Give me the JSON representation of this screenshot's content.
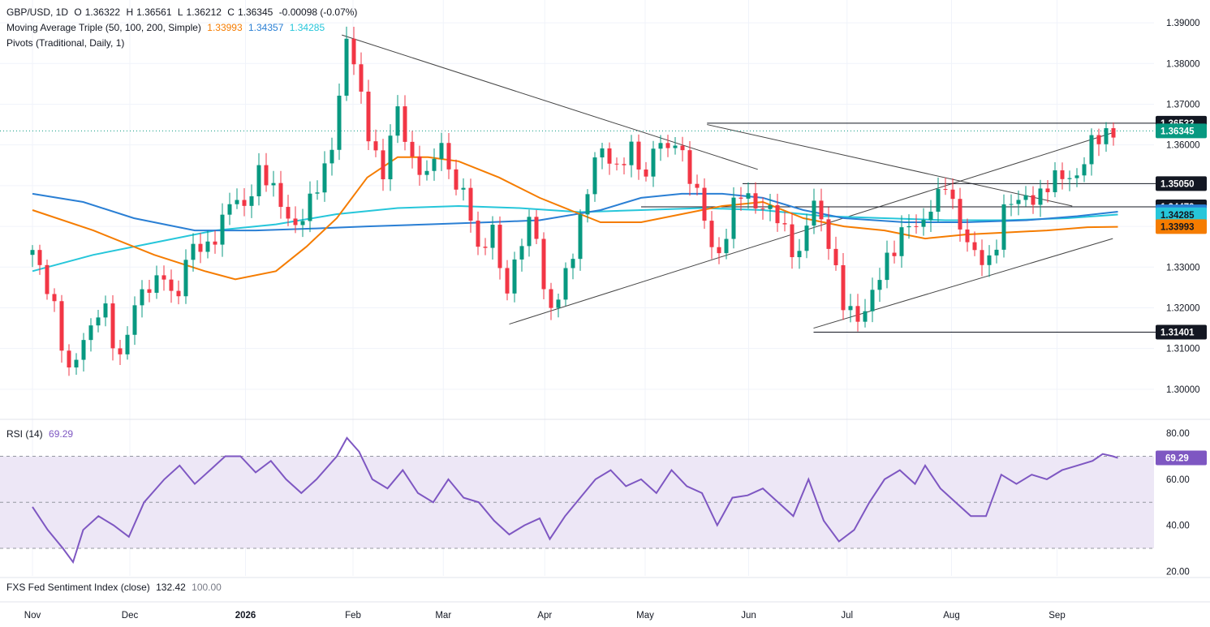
{
  "legend": {
    "symbol": "GBP/USD, 1D",
    "o_label": "O",
    "o": "1.36322",
    "h_label": "H",
    "h": "1.36561",
    "l_label": "L",
    "l": "1.36212",
    "c_label": "C",
    "c": "1.36345",
    "change": "-0.00098 (-0.07%)",
    "ma_label": "Moving Average Triple (50, 100, 200, Simple)",
    "ma50": "1.33993",
    "ma100": "1.34357",
    "ma200": "1.34285",
    "pivots_label": "Pivots (Traditional, Daily, 1)",
    "rsi_label": "RSI (14)",
    "rsi_value": "69.29",
    "fxs_label": "FXS Fed Sentiment Index (close)",
    "fxs_value": "132.42",
    "fxs_value2": "100.00"
  },
  "colors": {
    "up": "#089981",
    "down": "#f23645",
    "ma50": "#f57c00",
    "ma100": "#2a7fd4",
    "ma200": "#26c6da",
    "rsi": "#7e57c2",
    "rsi_band": "#ede7f6",
    "trend": "#444444",
    "grid": "#f0f3fa"
  },
  "chart_data": [
    {
      "type": "candlestick",
      "title": "GBP/USD, 1D",
      "ylim": [
        1.293,
        1.394
      ],
      "yticks": [
        "1.30000",
        "1.31000",
        "1.32000",
        "1.33000",
        "1.34000",
        "1.35000",
        "1.36000",
        "1.37000",
        "1.38000",
        "1.39000"
      ],
      "xticks": [
        {
          "label": "Nov",
          "t": 0.0,
          "bold": false
        },
        {
          "label": "Dec",
          "t": 0.096,
          "bold": false
        },
        {
          "label": "2026",
          "t": 0.21,
          "bold": true
        },
        {
          "label": "Feb",
          "t": 0.316,
          "bold": false
        },
        {
          "label": "Mar",
          "t": 0.405,
          "bold": false
        },
        {
          "label": "Apr",
          "t": 0.505,
          "bold": false
        },
        {
          "label": "May",
          "t": 0.604,
          "bold": false
        },
        {
          "label": "Jun",
          "t": 0.706,
          "bold": false
        },
        {
          "label": "Jul",
          "t": 0.803,
          "bold": false
        },
        {
          "label": "Aug",
          "t": 0.906,
          "bold": false
        },
        {
          "label": "Sep",
          "t": 1.01,
          "bold": false
        }
      ],
      "close_path": [
        [
          0,
          1.333
        ],
        [
          0.02,
          1.323
        ],
        [
          0.035,
          1.302
        ],
        [
          0.05,
          1.313
        ],
        [
          0.07,
          1.32
        ],
        [
          0.085,
          1.307
        ],
        [
          0.095,
          1.316
        ],
        [
          0.105,
          1.322
        ],
        [
          0.12,
          1.327
        ],
        [
          0.13,
          1.329
        ],
        [
          0.14,
          1.318
        ],
        [
          0.155,
          1.337
        ],
        [
          0.175,
          1.333
        ],
        [
          0.195,
          1.348
        ],
        [
          0.21,
          1.343
        ],
        [
          0.225,
          1.356
        ],
        [
          0.24,
          1.347
        ],
        [
          0.255,
          1.34
        ],
        [
          0.27,
          1.344
        ],
        [
          0.285,
          1.351
        ],
        [
          0.3,
          1.366
        ],
        [
          0.308,
          1.386
        ],
        [
          0.318,
          1.379
        ],
        [
          0.33,
          1.365
        ],
        [
          0.345,
          1.351
        ],
        [
          0.36,
          1.37
        ],
        [
          0.375,
          1.355
        ],
        [
          0.39,
          1.351
        ],
        [
          0.4,
          1.364
        ],
        [
          0.415,
          1.349
        ],
        [
          0.43,
          1.347
        ],
        [
          0.44,
          1.333
        ],
        [
          0.455,
          1.339
        ],
        [
          0.465,
          1.323
        ],
        [
          0.48,
          1.335
        ],
        [
          0.495,
          1.342
        ],
        [
          0.505,
          1.323
        ],
        [
          0.515,
          1.319
        ],
        [
          0.53,
          1.331
        ],
        [
          0.545,
          1.348
        ],
        [
          0.56,
          1.359
        ],
        [
          0.575,
          1.355
        ],
        [
          0.59,
          1.358
        ],
        [
          0.605,
          1.352
        ],
        [
          0.615,
          1.364
        ],
        [
          0.625,
          1.356
        ],
        [
          0.635,
          1.362
        ],
        [
          0.645,
          1.355
        ],
        [
          0.655,
          1.348
        ],
        [
          0.665,
          1.338
        ],
        [
          0.675,
          1.332
        ],
        [
          0.69,
          1.344
        ],
        [
          0.7,
          1.348
        ],
        [
          0.72,
          1.345
        ],
        [
          0.74,
          1.34
        ],
        [
          0.755,
          1.332
        ],
        [
          0.77,
          1.346
        ],
        [
          0.785,
          1.337
        ],
        [
          0.8,
          1.319
        ],
        [
          0.815,
          1.318
        ],
        [
          0.83,
          1.324
        ],
        [
          0.845,
          1.333
        ],
        [
          0.86,
          1.341
        ],
        [
          0.875,
          1.338
        ],
        [
          0.885,
          1.346
        ],
        [
          0.9,
          1.35
        ],
        [
          0.91,
          1.342
        ],
        [
          0.92,
          1.338
        ],
        [
          0.935,
          1.331
        ],
        [
          0.945,
          1.33
        ],
        [
          0.96,
          1.348
        ],
        [
          0.97,
          1.345
        ],
        [
          0.985,
          1.347
        ],
        [
          1.0,
          1.35
        ],
        [
          1.015,
          1.352
        ],
        [
          1.03,
          1.353
        ],
        [
          1.045,
          1.36
        ],
        [
          1.06,
          1.364
        ],
        [
          1.07,
          1.3635
        ]
      ],
      "ma50_path": [
        [
          0,
          1.344
        ],
        [
          0.06,
          1.339
        ],
        [
          0.12,
          1.333
        ],
        [
          0.17,
          1.329
        ],
        [
          0.2,
          1.327
        ],
        [
          0.24,
          1.329
        ],
        [
          0.27,
          1.335
        ],
        [
          0.3,
          1.342
        ],
        [
          0.33,
          1.352
        ],
        [
          0.36,
          1.357
        ],
        [
          0.39,
          1.357
        ],
        [
          0.42,
          1.356
        ],
        [
          0.46,
          1.352
        ],
        [
          0.5,
          1.347
        ],
        [
          0.53,
          1.344
        ],
        [
          0.56,
          1.341
        ],
        [
          0.6,
          1.341
        ],
        [
          0.64,
          1.343
        ],
        [
          0.68,
          1.345
        ],
        [
          0.72,
          1.346
        ],
        [
          0.76,
          1.342
        ],
        [
          0.8,
          1.34
        ],
        [
          0.84,
          1.339
        ],
        [
          0.88,
          1.337
        ],
        [
          0.92,
          1.338
        ],
        [
          0.96,
          1.3385
        ],
        [
          1.0,
          1.339
        ],
        [
          1.04,
          1.3398
        ],
        [
          1.07,
          1.3399
        ]
      ],
      "ma100_path": [
        [
          0,
          1.348
        ],
        [
          0.05,
          1.346
        ],
        [
          0.1,
          1.342
        ],
        [
          0.16,
          1.339
        ],
        [
          0.22,
          1.339
        ],
        [
          0.28,
          1.3395
        ],
        [
          0.33,
          1.34
        ],
        [
          0.39,
          1.3405
        ],
        [
          0.45,
          1.341
        ],
        [
          0.5,
          1.3415
        ],
        [
          0.56,
          1.344
        ],
        [
          0.6,
          1.347
        ],
        [
          0.64,
          1.348
        ],
        [
          0.68,
          1.348
        ],
        [
          0.72,
          1.347
        ],
        [
          0.76,
          1.344
        ],
        [
          0.8,
          1.342
        ],
        [
          0.86,
          1.341
        ],
        [
          0.92,
          1.341
        ],
        [
          0.98,
          1.3415
        ],
        [
          1.03,
          1.3425
        ],
        [
          1.07,
          1.3436
        ]
      ],
      "ma200_path": [
        [
          0,
          1.329
        ],
        [
          0.06,
          1.333
        ],
        [
          0.12,
          1.336
        ],
        [
          0.18,
          1.339
        ],
        [
          0.24,
          1.3405
        ],
        [
          0.3,
          1.343
        ],
        [
          0.36,
          1.3445
        ],
        [
          0.42,
          1.345
        ],
        [
          0.48,
          1.3445
        ],
        [
          0.54,
          1.3435
        ],
        [
          0.6,
          1.344
        ],
        [
          0.66,
          1.3445
        ],
        [
          0.72,
          1.344
        ],
        [
          0.78,
          1.3425
        ],
        [
          0.84,
          1.342
        ],
        [
          0.9,
          1.3415
        ],
        [
          0.96,
          1.3415
        ],
        [
          1.02,
          1.342
        ],
        [
          1.07,
          1.3429
        ]
      ],
      "trendlines": [
        [
          [
            0.305,
            1.387
          ],
          [
            0.715,
            1.354
          ]
        ],
        [
          [
            0.665,
            1.365
          ],
          [
            1.025,
            1.345
          ]
        ],
        [
          [
            0.47,
            1.316
          ],
          [
            1.065,
            1.363
          ]
        ],
        [
          [
            0.77,
            1.315
          ],
          [
            1.065,
            1.337
          ]
        ]
      ],
      "pivot_lines": [
        {
          "value": 1.36533,
          "label": "1.36533",
          "t0": 0.665,
          "t1": 1.07
        },
        {
          "value": 1.3505,
          "label": "1.35050",
          "t0": 0.7,
          "t1": 1.07
        },
        {
          "value": 1.34479,
          "label": "1.34479",
          "t0": 0.6,
          "t1": 1.07
        },
        {
          "value": 1.31401,
          "label": "1.31401",
          "t0": 0.77,
          "t1": 1.07
        }
      ],
      "price_labels": [
        {
          "value": 1.36533,
          "label": "1.36533",
          "style": "dark"
        },
        {
          "value": 1.36345,
          "label": "1.36345",
          "style": "up"
        },
        {
          "value": 1.3505,
          "label": "1.35050",
          "style": "dark"
        },
        {
          "value": 1.34479,
          "label": "1.34479",
          "style": "dark"
        },
        {
          "value": 1.34357,
          "label": "1.34357",
          "style": "ma100"
        },
        {
          "value": 1.34285,
          "label": "1.34285",
          "style": "ma200"
        },
        {
          "value": 1.33993,
          "label": "1.33993",
          "style": "ma50"
        },
        {
          "value": 1.31401,
          "label": "1.31401",
          "style": "dark"
        }
      ]
    },
    {
      "type": "line",
      "title": "RSI (14)",
      "ylim": [
        18,
        85
      ],
      "yticks": [
        "20.00",
        "40.00",
        "60.00",
        "80.00"
      ],
      "band": [
        30,
        70
      ],
      "midline": 50,
      "last_label": "69.29",
      "rsi_path": [
        [
          0,
          48
        ],
        [
          0.015,
          38
        ],
        [
          0.03,
          30
        ],
        [
          0.04,
          24
        ],
        [
          0.05,
          38
        ],
        [
          0.065,
          44
        ],
        [
          0.08,
          40
        ],
        [
          0.095,
          35
        ],
        [
          0.11,
          50
        ],
        [
          0.13,
          60
        ],
        [
          0.145,
          66
        ],
        [
          0.16,
          58
        ],
        [
          0.175,
          64
        ],
        [
          0.19,
          70
        ],
        [
          0.205,
          70
        ],
        [
          0.22,
          63
        ],
        [
          0.235,
          68
        ],
        [
          0.25,
          60
        ],
        [
          0.265,
          54
        ],
        [
          0.28,
          60
        ],
        [
          0.3,
          70
        ],
        [
          0.31,
          78
        ],
        [
          0.322,
          72
        ],
        [
          0.335,
          60
        ],
        [
          0.35,
          56
        ],
        [
          0.365,
          64
        ],
        [
          0.38,
          54
        ],
        [
          0.395,
          50
        ],
        [
          0.41,
          60
        ],
        [
          0.425,
          52
        ],
        [
          0.44,
          50
        ],
        [
          0.455,
          42
        ],
        [
          0.47,
          36
        ],
        [
          0.485,
          40
        ],
        [
          0.5,
          43
        ],
        [
          0.51,
          34
        ],
        [
          0.525,
          44
        ],
        [
          0.54,
          52
        ],
        [
          0.555,
          60
        ],
        [
          0.57,
          64
        ],
        [
          0.585,
          57
        ],
        [
          0.6,
          60
        ],
        [
          0.615,
          54
        ],
        [
          0.63,
          64
        ],
        [
          0.645,
          57
        ],
        [
          0.66,
          54
        ],
        [
          0.675,
          40
        ],
        [
          0.69,
          52
        ],
        [
          0.705,
          53
        ],
        [
          0.72,
          56
        ],
        [
          0.735,
          50
        ],
        [
          0.75,
          44
        ],
        [
          0.765,
          60
        ],
        [
          0.78,
          42
        ],
        [
          0.795,
          33
        ],
        [
          0.81,
          38
        ],
        [
          0.825,
          50
        ],
        [
          0.84,
          60
        ],
        [
          0.855,
          64
        ],
        [
          0.87,
          58
        ],
        [
          0.88,
          66
        ],
        [
          0.895,
          56
        ],
        [
          0.91,
          50
        ],
        [
          0.925,
          44
        ],
        [
          0.94,
          44
        ],
        [
          0.955,
          62
        ],
        [
          0.97,
          58
        ],
        [
          0.985,
          62
        ],
        [
          1.0,
          60
        ],
        [
          1.015,
          64
        ],
        [
          1.03,
          66
        ],
        [
          1.045,
          68
        ],
        [
          1.055,
          71
        ],
        [
          1.065,
          70
        ],
        [
          1.07,
          69.29
        ]
      ]
    },
    {
      "type": "line",
      "title": "FXS Fed Sentiment Index (close)",
      "values_shown": [
        "132.42",
        "100.00"
      ]
    }
  ]
}
